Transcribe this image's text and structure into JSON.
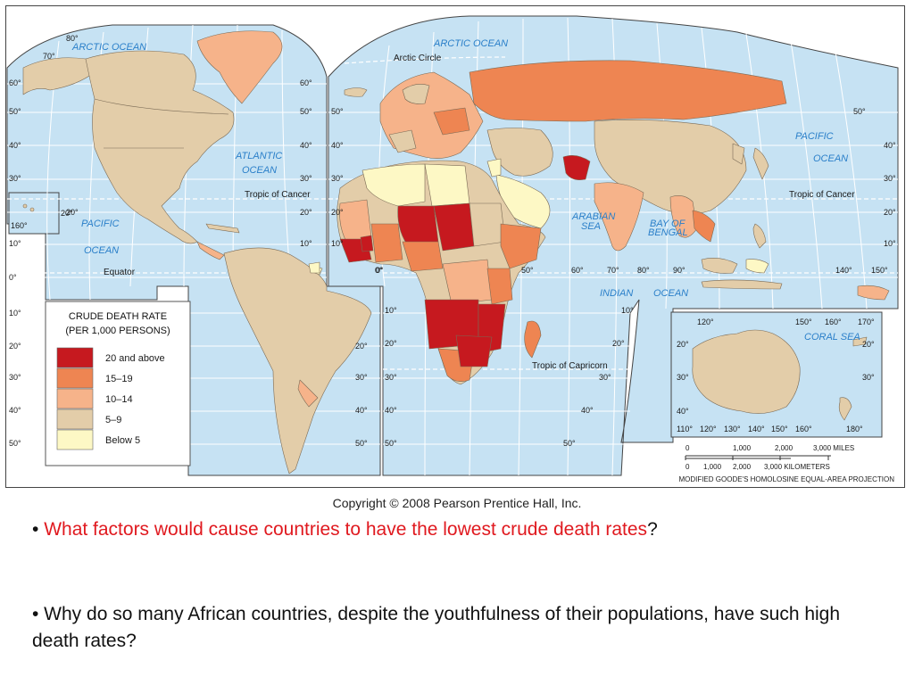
{
  "legend": {
    "title_line1": "CRUDE DEATH RATE",
    "title_line2": "(PER 1,000 PERSONS)",
    "items": [
      {
        "label": "20 and above",
        "color": "#c6191f"
      },
      {
        "label": "15–19",
        "color": "#ee8552"
      },
      {
        "label": "10–14",
        "color": "#f6b38a"
      },
      {
        "label": "5–9",
        "color": "#e3cda9"
      },
      {
        "label": "Below 5",
        "color": "#fdf8c5"
      }
    ]
  },
  "colors": {
    "ocean": "#c6e2f3",
    "grid": "#ffffff",
    "border": "#555555"
  },
  "labels": {
    "arctic_ocean_left": "ARCTIC OCEAN",
    "arctic_ocean_right": "ARCTIC OCEAN",
    "arctic_circle": "Arctic Circle",
    "atlantic_ocean_1": "ATLANTIC",
    "atlantic_ocean_2": "OCEAN",
    "pacific_ocean_left_1": "PACIFIC",
    "pacific_ocean_left_2": "OCEAN",
    "pacific_ocean_right_1": "PACIFIC",
    "pacific_ocean_right_2": "OCEAN",
    "tropic_cancer_left": "Tropic of Cancer",
    "tropic_cancer_right": "Tropic of Cancer",
    "equator": "Equator",
    "tropic_capricorn": "Tropic of Capricorn",
    "arabian_sea_1": "ARABIAN",
    "arabian_sea_2": "SEA",
    "bay_of_bengal_1": "BAY OF",
    "bay_of_bengal_2": "BENGAL",
    "indian_ocean_1": "INDIAN",
    "indian_ocean_2": "OCEAN",
    "coral_sea": "CORAL   SEA"
  },
  "latitudes_left": [
    "80°",
    "70°",
    "60°",
    "50°",
    "40°",
    "30°",
    "20°",
    "10°",
    "0°",
    "10°",
    "20°",
    "30°",
    "40°",
    "50°"
  ],
  "latitudes_mid": [
    "60°",
    "50°",
    "40°",
    "30°",
    "20°",
    "10°",
    "20°",
    "30°",
    "40°",
    "50°"
  ],
  "latitudes_inner": [
    "50°",
    "40°",
    "30°",
    "20°",
    "10°",
    "0°",
    "10°",
    "20°",
    "30°",
    "40°",
    "50°"
  ],
  "latitudes_right": [
    "50°",
    "40°",
    "30°",
    "20°",
    "10°",
    "10°",
    "20°",
    "30°",
    "40°",
    "50°"
  ],
  "latitudes_far_right": [
    "40°",
    "30°",
    "20°",
    "10°"
  ],
  "longitudes_bottom": [
    "0°",
    "50°",
    "60°",
    "70°",
    "80°",
    "90°",
    "140°",
    "150°"
  ],
  "label_160": "160°",
  "label_20": "20°",
  "inset": {
    "top_lons": [
      "120°",
      "150°",
      "160°",
      "170°"
    ],
    "bottom_lons": [
      "110°",
      "120°",
      "130°",
      "140°",
      "150°",
      "160°",
      "180°"
    ],
    "lats": [
      "20°",
      "30°",
      "40°",
      "20°",
      "30°"
    ]
  },
  "scale": {
    "miles_ticks": [
      "0",
      "1,000",
      "2,000",
      "3,000 MILES"
    ],
    "km_ticks": [
      "0",
      "1,000",
      "2,000",
      "3,000 KILOMETERS"
    ]
  },
  "projection": "MODIFIED GOODE'S HOMOLOSINE EQUAL-AREA PROJECTION",
  "copyright": "Copyright © 2008 Pearson Prentice Hall, Inc.",
  "bullets": {
    "b1_prefix": "•  ",
    "b1_highlight": "What factors would cause countries to have the lowest crude death rates",
    "b1_suffix": "?",
    "b2": "•  Why do so many African countries, despite the youthfulness of their populations, have such high death rates?"
  }
}
